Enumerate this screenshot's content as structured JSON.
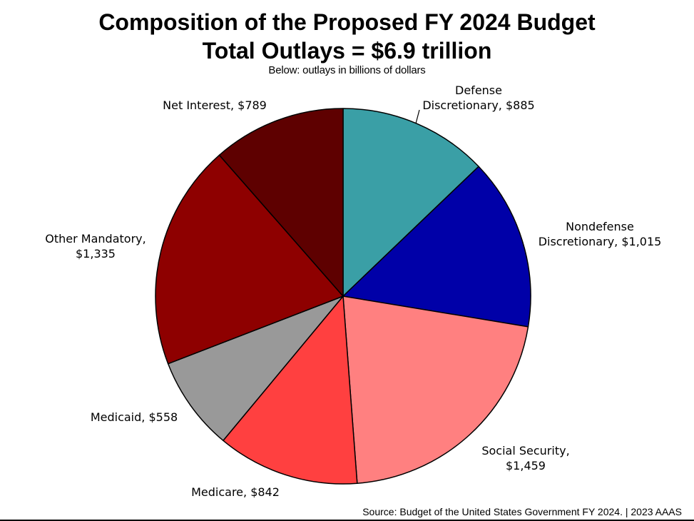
{
  "chart_data": {
    "type": "pie",
    "title": [
      "Composition of the Proposed FY 2024 Budget",
      "Total Outlays = $6.9 trillion"
    ],
    "subtitle": "Below: outlays in billions of dollars",
    "unit": "billions of dollars",
    "slices": [
      {
        "name": "Defense Discretionary",
        "value": 885,
        "color": "#3A9FA6",
        "label_lines": [
          "Defense",
          "Discretionary, $885"
        ]
      },
      {
        "name": "Nondefense Discretionary",
        "value": 1015,
        "color": "#0000A8",
        "label_lines": [
          "Nondefense",
          "Discretionary, $1,015"
        ]
      },
      {
        "name": "Social Security",
        "value": 1459,
        "color": "#FF8080",
        "label_lines": [
          "Social Security,",
          "$1,459"
        ]
      },
      {
        "name": "Medicare",
        "value": 842,
        "color": "#FF4040",
        "label_lines": [
          "Medicare, $842"
        ]
      },
      {
        "name": "Medicaid",
        "value": 558,
        "color": "#999999",
        "label_lines": [
          "Medicaid, $558"
        ]
      },
      {
        "name": "Other Mandatory",
        "value": 1335,
        "color": "#8E0000",
        "label_lines": [
          "Other Mandatory,",
          "$1,335"
        ]
      },
      {
        "name": "Net Interest",
        "value": 789,
        "color": "#5E0000",
        "label_lines": [
          "Net Interest, $789"
        ]
      }
    ]
  },
  "source": "Source: Budget of the United States Government FY 2024. | 2023 AAAS"
}
